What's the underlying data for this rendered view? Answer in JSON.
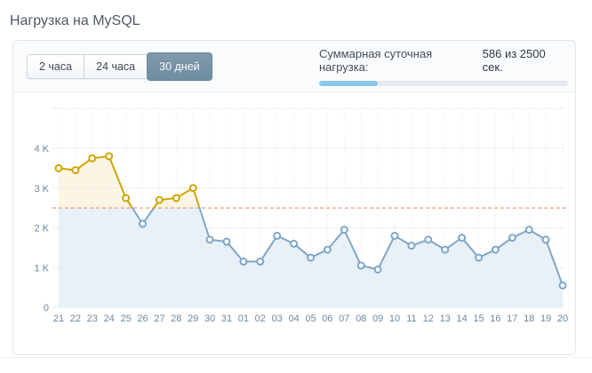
{
  "page": {
    "title": "Нагрузка на MySQL"
  },
  "toolbar": {
    "tabs": [
      {
        "label": "2 часа",
        "active": false
      },
      {
        "label": "24 часа",
        "active": false
      },
      {
        "label": "30 дней",
        "active": true
      }
    ],
    "summary": {
      "label": "Суммарная суточная нагрузка:",
      "value": "586 из 2500 сек.",
      "used_seconds": 586,
      "limit_seconds": 2500
    }
  },
  "chart_data": {
    "type": "line",
    "title": "Нагрузка на MySQL",
    "xlabel": "",
    "ylabel": "",
    "x": [
      "21",
      "22",
      "23",
      "24",
      "25",
      "26",
      "27",
      "28",
      "29",
      "30",
      "31",
      "01",
      "02",
      "03",
      "04",
      "05",
      "06",
      "07",
      "08",
      "09",
      "10",
      "11",
      "12",
      "13",
      "14",
      "15",
      "16",
      "17",
      "18",
      "19",
      "20"
    ],
    "series": [
      {
        "name": "Суммарная суточная нагрузка",
        "values": [
          3500,
          3450,
          3750,
          3800,
          2750,
          2100,
          2700,
          2750,
          3000,
          1700,
          1650,
          1150,
          1150,
          1800,
          1600,
          1250,
          1450,
          1950,
          1050,
          950,
          1800,
          1550,
          1700,
          1450,
          1750,
          1250,
          1450,
          1750,
          1950,
          1700,
          550
        ]
      }
    ],
    "threshold": 2500,
    "ylim": [
      0,
      5000
    ],
    "yticks": [
      {
        "value": 0,
        "label": "0"
      },
      {
        "value": 1000,
        "label": "1 K"
      },
      {
        "value": 2000,
        "label": "2 K"
      },
      {
        "value": 3000,
        "label": "3 K"
      },
      {
        "value": 4000,
        "label": "4 K"
      }
    ],
    "grid": true,
    "legend_position": "none",
    "colors": {
      "line_above": "#d1a306",
      "line_below": "#7fa6c6",
      "fill_above": "#fdf5e3",
      "fill_below": "#e8f0f8",
      "threshold": "#e0895f",
      "grid_h": "#e7eff2",
      "grid_v": "#dfe7ec",
      "axis_text": "#6b8aa2",
      "marker_fill": "#ffffff"
    }
  }
}
